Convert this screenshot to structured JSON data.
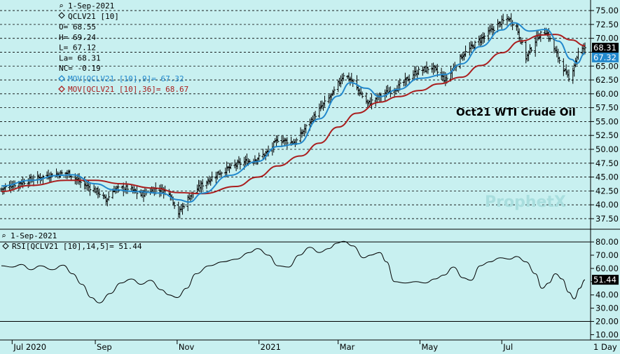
{
  "chart_data": {
    "type": "bar",
    "subtype": "ohlc",
    "date": "1-Sep-2021",
    "symbol": "QCLV21 [10]",
    "ohlc_readout": [
      {
        "label": "O",
        "value": "68.55"
      },
      {
        "label": "H",
        "value": "69.24"
      },
      {
        "label": "L",
        "value": "67.12"
      },
      {
        "label": "La",
        "value": "68.31"
      },
      {
        "label": "NC",
        "value": "-0.19"
      }
    ],
    "annotation": "Oct21 WTI Crude Oil",
    "watermark": "ProphetX",
    "last_price_label": "68.31",
    "ma9_value_label": "67.32",
    "price_axis": {
      "ylim": [
        35.6,
        76.4
      ],
      "ticks": [
        "37.50",
        "40.00",
        "42.50",
        "45.00",
        "47.50",
        "50.00",
        "52.50",
        "55.00",
        "57.50",
        "60.00",
        "62.50",
        "65.00",
        "67.50",
        "70.00",
        "72.50",
        "75.00"
      ]
    },
    "rsi_axis": {
      "ylim": [
        6,
        88
      ],
      "ticks": [
        "10.00",
        "20.00",
        "30.00",
        "40.00",
        "50.00",
        "60.00",
        "70.00",
        "80.00"
      ],
      "levels": [
        80,
        20
      ]
    },
    "x_labels": [
      {
        "label": "Jul 2020",
        "date": "2020-07-01"
      },
      {
        "label": "Sep",
        "date": "2020-09-01"
      },
      {
        "label": "Nov",
        "date": "2020-11-01"
      },
      {
        "label": "2021",
        "date": "2021-01-01"
      },
      {
        "label": "Mar",
        "date": "2021-03-01"
      },
      {
        "label": "May",
        "date": "2021-05-01"
      },
      {
        "label": "Jul",
        "date": "2021-07-01"
      }
    ],
    "period_label": "1 Day",
    "close_path": [
      [
        "2020-06-23",
        42.8
      ],
      [
        "2020-07-01",
        43.6
      ],
      [
        "2020-07-15",
        44.5
      ],
      [
        "2020-07-31",
        45.5
      ],
      [
        "2020-08-12",
        45.7
      ],
      [
        "2020-08-20",
        44.2
      ],
      [
        "2020-09-03",
        42.3
      ],
      [
        "2020-09-09",
        40.8
      ],
      [
        "2020-09-15",
        42.8
      ],
      [
        "2020-09-25",
        43.0
      ],
      [
        "2020-10-05",
        41.8
      ],
      [
        "2020-10-16",
        42.9
      ],
      [
        "2020-10-26",
        42.4
      ],
      [
        "2020-11-02",
        38.5
      ],
      [
        "2020-11-10",
        41.5
      ],
      [
        "2020-11-20",
        43.7
      ],
      [
        "2020-12-01",
        45.6
      ],
      [
        "2020-12-15",
        47.2
      ],
      [
        "2020-12-31",
        48.4
      ],
      [
        "2021-01-08",
        49.5
      ],
      [
        "2021-01-15",
        51.8
      ],
      [
        "2021-01-28",
        51.2
      ],
      [
        "2021-02-05",
        54.0
      ],
      [
        "2021-02-16",
        57.5
      ],
      [
        "2021-02-25",
        60.0
      ],
      [
        "2021-03-05",
        63.5
      ],
      [
        "2021-03-11",
        62.4
      ],
      [
        "2021-03-23",
        58.2
      ],
      [
        "2021-04-01",
        59.6
      ],
      [
        "2021-04-15",
        61.3
      ],
      [
        "2021-04-28",
        63.9
      ],
      [
        "2021-05-10",
        64.8
      ],
      [
        "2021-05-20",
        62.5
      ],
      [
        "2021-06-01",
        66.8
      ],
      [
        "2021-06-15",
        69.8
      ],
      [
        "2021-06-30",
        72.8
      ],
      [
        "2021-07-06",
        73.6
      ],
      [
        "2021-07-12",
        72.0
      ],
      [
        "2021-07-19",
        66.5
      ],
      [
        "2021-07-28",
        70.4
      ],
      [
        "2021-08-03",
        71.3
      ],
      [
        "2021-08-10",
        67.6
      ],
      [
        "2021-08-20",
        62.5
      ],
      [
        "2021-08-27",
        67.4
      ],
      [
        "2021-09-01",
        68.31
      ]
    ],
    "series": [
      {
        "name": "MOV[QCLV21 [10],9]",
        "value_label": "67.32",
        "color": "#2288cc",
        "values": [
          [
            "2020-06-23",
            43.4
          ],
          [
            "2020-07-15",
            44.4
          ],
          [
            "2020-08-05",
            45.3
          ],
          [
            "2020-08-15",
            45.4
          ],
          [
            "2020-09-01",
            43.8
          ],
          [
            "2020-09-15",
            42.7
          ],
          [
            "2020-10-01",
            42.4
          ],
          [
            "2020-10-20",
            42.1
          ],
          [
            "2020-11-02",
            40.9
          ],
          [
            "2020-11-10",
            40.5
          ],
          [
            "2020-11-20",
            42.1
          ],
          [
            "2020-12-10",
            45.3
          ],
          [
            "2020-12-31",
            47.8
          ],
          [
            "2021-01-15",
            50.5
          ],
          [
            "2021-01-30",
            51.0
          ],
          [
            "2021-02-15",
            55.5
          ],
          [
            "2021-03-01",
            59.6
          ],
          [
            "2021-03-10",
            62.0
          ],
          [
            "2021-03-22",
            61.0
          ],
          [
            "2021-04-01",
            59.5
          ],
          [
            "2021-04-15",
            60.8
          ],
          [
            "2021-05-01",
            62.8
          ],
          [
            "2021-05-20",
            63.5
          ],
          [
            "2021-06-01",
            65.4
          ],
          [
            "2021-06-15",
            68.5
          ],
          [
            "2021-07-01",
            71.5
          ],
          [
            "2021-07-10",
            72.8
          ],
          [
            "2021-07-22",
            71.3
          ],
          [
            "2021-08-03",
            71.6
          ],
          [
            "2021-08-12",
            69.5
          ],
          [
            "2021-08-22",
            66.2
          ],
          [
            "2021-08-26",
            65.5
          ],
          [
            "2021-09-01",
            67.32
          ]
        ]
      },
      {
        "name": "MOV[QCLV21 [10],36]",
        "value_label": "68.67",
        "color": "#aa1e1e",
        "values": [
          [
            "2020-06-23",
            42.4
          ],
          [
            "2020-07-15",
            43.5
          ],
          [
            "2020-08-10",
            44.4
          ],
          [
            "2020-09-01",
            44.4
          ],
          [
            "2020-09-20",
            43.8
          ],
          [
            "2020-10-15",
            43.0
          ],
          [
            "2020-11-02",
            42.2
          ],
          [
            "2020-11-20",
            42.0
          ],
          [
            "2020-12-15",
            43.3
          ],
          [
            "2020-12-31",
            45.0
          ],
          [
            "2021-01-15",
            47.0
          ],
          [
            "2021-02-01",
            48.8
          ],
          [
            "2021-02-15",
            51.1
          ],
          [
            "2021-03-01",
            54.0
          ],
          [
            "2021-03-15",
            56.5
          ],
          [
            "2021-04-01",
            58.5
          ],
          [
            "2021-04-15",
            59.5
          ],
          [
            "2021-05-01",
            60.6
          ],
          [
            "2021-05-15",
            61.8
          ],
          [
            "2021-06-01",
            63.0
          ],
          [
            "2021-06-15",
            65.1
          ],
          [
            "2021-07-01",
            67.4
          ],
          [
            "2021-07-15",
            69.5
          ],
          [
            "2021-07-31",
            70.6
          ],
          [
            "2021-08-10",
            70.7
          ],
          [
            "2021-08-22",
            69.7
          ],
          [
            "2021-09-01",
            68.67
          ]
        ]
      }
    ],
    "rsi": {
      "label": "RSI[QCLV21 [10],14,5]",
      "value_label": "51.44",
      "values": [
        [
          "2020-06-23",
          62.0
        ],
        [
          "2020-07-01",
          61.0
        ],
        [
          "2020-07-08",
          63.0
        ],
        [
          "2020-07-15",
          59.0
        ],
        [
          "2020-07-22",
          62.0
        ],
        [
          "2020-07-31",
          59.0
        ],
        [
          "2020-08-08",
          62.5
        ],
        [
          "2020-08-15",
          56.0
        ],
        [
          "2020-08-22",
          48.0
        ],
        [
          "2020-08-29",
          38.0
        ],
        [
          "2020-09-04",
          34.0
        ],
        [
          "2020-09-12",
          41.0
        ],
        [
          "2020-09-20",
          49.0
        ],
        [
          "2020-09-28",
          52.0
        ],
        [
          "2020-10-05",
          48.0
        ],
        [
          "2020-10-12",
          51.0
        ],
        [
          "2020-10-20",
          44.0
        ],
        [
          "2020-10-26",
          40.0
        ],
        [
          "2020-11-01",
          38.0
        ],
        [
          "2020-11-08",
          45.0
        ],
        [
          "2020-11-15",
          56.0
        ],
        [
          "2020-11-25",
          62.0
        ],
        [
          "2020-12-05",
          65.0
        ],
        [
          "2020-12-15",
          67.0
        ],
        [
          "2020-12-25",
          72.0
        ],
        [
          "2020-12-31",
          75.0
        ],
        [
          "2021-01-08",
          70.0
        ],
        [
          "2021-01-15",
          62.0
        ],
        [
          "2021-01-23",
          61.0
        ],
        [
          "2021-01-31",
          70.0
        ],
        [
          "2021-02-08",
          76.0
        ],
        [
          "2021-02-15",
          72.0
        ],
        [
          "2021-02-22",
          75.0
        ],
        [
          "2021-02-28",
          79.0
        ],
        [
          "2021-03-05",
          80.5
        ],
        [
          "2021-03-12",
          77.0
        ],
        [
          "2021-03-20",
          68.0
        ],
        [
          "2021-03-25",
          70.0
        ],
        [
          "2021-04-01",
          72.0
        ],
        [
          "2021-04-06",
          65.0
        ],
        [
          "2021-04-12",
          50.0
        ],
        [
          "2021-04-20",
          49.0
        ],
        [
          "2021-04-28",
          50.0
        ],
        [
          "2021-05-05",
          49.0
        ],
        [
          "2021-05-12",
          52.0
        ],
        [
          "2021-05-19",
          55.0
        ],
        [
          "2021-05-26",
          61.0
        ],
        [
          "2021-06-02",
          53.0
        ],
        [
          "2021-06-08",
          51.0
        ],
        [
          "2021-06-15",
          62.0
        ],
        [
          "2021-06-22",
          65.0
        ],
        [
          "2021-06-30",
          68.0
        ],
        [
          "2021-07-07",
          67.0
        ],
        [
          "2021-07-12",
          69.0
        ],
        [
          "2021-07-19",
          65.0
        ],
        [
          "2021-07-26",
          56.0
        ],
        [
          "2021-07-31",
          45.0
        ],
        [
          "2021-08-05",
          49.0
        ],
        [
          "2021-08-10",
          56.0
        ],
        [
          "2021-08-15",
          52.0
        ],
        [
          "2021-08-20",
          42.0
        ],
        [
          "2021-08-24",
          37.0
        ],
        [
          "2021-08-28",
          45.0
        ],
        [
          "2021-09-01",
          51.44
        ]
      ]
    },
    "colors": {
      "background": "#c8f0f0",
      "bars": "#000000",
      "ma_short": "#2288cc",
      "ma_long": "#aa1e1e",
      "rsi": "#000000",
      "last_price_box": "#000000",
      "ma_short_box": "#2288cc"
    }
  }
}
